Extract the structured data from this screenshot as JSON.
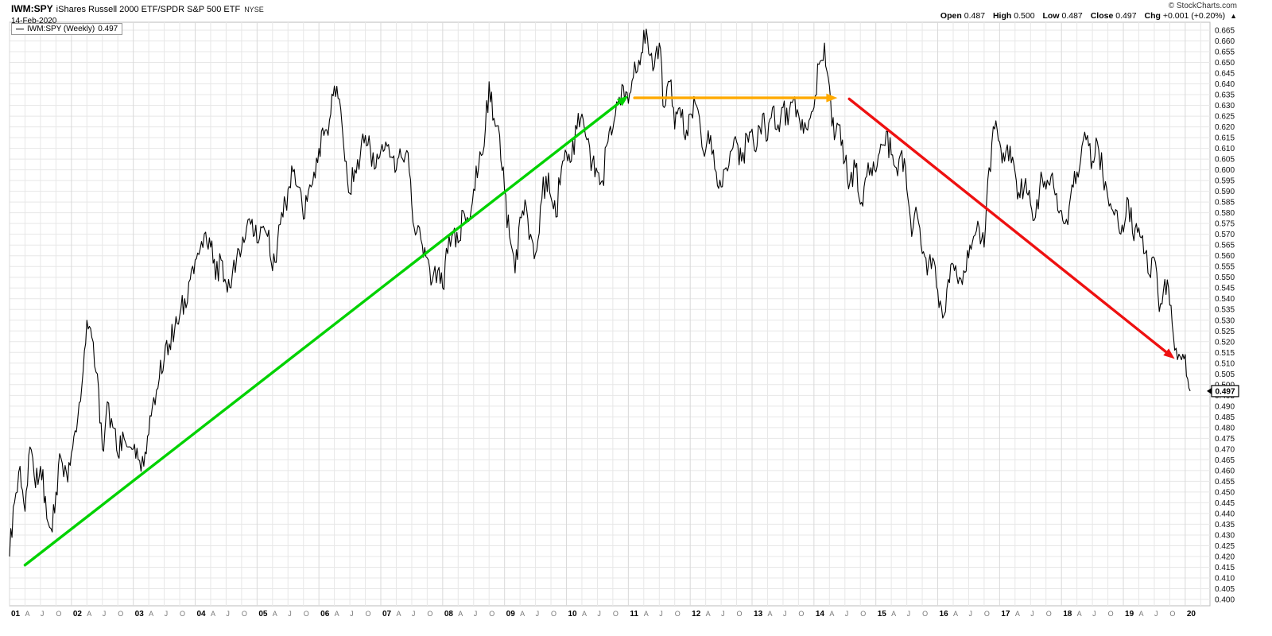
{
  "header": {
    "symbol": "IWM:SPY",
    "name": "iShares Russell 2000 ETF/SPDR S&P 500 ETF",
    "exchange": "NYSE",
    "date": "14-Feb-2020",
    "copyright": "© StockCharts.com",
    "quote": {
      "open_label": "Open",
      "open": "0.487",
      "high_label": "High",
      "high": "0.500",
      "low_label": "Low",
      "low": "0.487",
      "close_label": "Close",
      "close": "0.497",
      "chg_label": "Chg",
      "chg": "+0.001 (+0.20%)",
      "direction_icon": "▲"
    }
  },
  "legend": {
    "swatch": "—",
    "label": "IWM:SPY (Weekly)",
    "value": "0.497"
  },
  "last_price_tag": "0.497",
  "chart_data": {
    "type": "line",
    "title": "IWM:SPY iShares Russell 2000 ETF/SPDR S&P 500 ETF (Weekly ratio chart)",
    "ylim": [
      0.4,
      0.665
    ],
    "y_tick_step": 0.005,
    "x_axis": {
      "start": 2001,
      "end": 2020.4,
      "year_labels": [
        "01",
        "02",
        "03",
        "04",
        "05",
        "06",
        "07",
        "08",
        "09",
        "10",
        "11",
        "12",
        "13",
        "14",
        "15",
        "16",
        "17",
        "18",
        "19",
        "20"
      ],
      "month_labels": [
        "A",
        "J",
        "O"
      ]
    },
    "grid": true,
    "line_color": "#000000",
    "grid_color": "#e7e7e7",
    "series": [
      {
        "name": "IWM:SPY (Weekly)",
        "points": [
          [
            2001.0,
            0.42
          ],
          [
            2001.08,
            0.445
          ],
          [
            2001.17,
            0.462
          ],
          [
            2001.25,
            0.441
          ],
          [
            2001.33,
            0.471
          ],
          [
            2001.42,
            0.452
          ],
          [
            2001.5,
            0.462
          ],
          [
            2001.58,
            0.448
          ],
          [
            2001.67,
            0.433
          ],
          [
            2001.75,
            0.45
          ],
          [
            2001.83,
            0.466
          ],
          [
            2001.92,
            0.459
          ],
          [
            2002.0,
            0.468
          ],
          [
            2002.08,
            0.478
          ],
          [
            2002.17,
            0.5
          ],
          [
            2002.25,
            0.53
          ],
          [
            2002.33,
            0.522
          ],
          [
            2002.42,
            0.505
          ],
          [
            2002.5,
            0.47
          ],
          [
            2002.58,
            0.492
          ],
          [
            2002.67,
            0.48
          ],
          [
            2002.75,
            0.467
          ],
          [
            2002.83,
            0.478
          ],
          [
            2002.92,
            0.471
          ],
          [
            2003.0,
            0.47
          ],
          [
            2003.08,
            0.465
          ],
          [
            2003.17,
            0.462
          ],
          [
            2003.25,
            0.477
          ],
          [
            2003.33,
            0.494
          ],
          [
            2003.42,
            0.503
          ],
          [
            2003.5,
            0.512
          ],
          [
            2003.58,
            0.519
          ],
          [
            2003.67,
            0.526
          ],
          [
            2003.75,
            0.532
          ],
          [
            2003.83,
            0.54
          ],
          [
            2003.92,
            0.549
          ],
          [
            2004.0,
            0.558
          ],
          [
            2004.08,
            0.563
          ],
          [
            2004.17,
            0.571
          ],
          [
            2004.25,
            0.564
          ],
          [
            2004.33,
            0.549
          ],
          [
            2004.42,
            0.558
          ],
          [
            2004.5,
            0.547
          ],
          [
            2004.58,
            0.545
          ],
          [
            2004.67,
            0.559
          ],
          [
            2004.75,
            0.563
          ],
          [
            2004.83,
            0.573
          ],
          [
            2004.92,
            0.577
          ],
          [
            2005.0,
            0.566
          ],
          [
            2005.08,
            0.573
          ],
          [
            2005.17,
            0.569
          ],
          [
            2005.25,
            0.553
          ],
          [
            2005.33,
            0.566
          ],
          [
            2005.42,
            0.578
          ],
          [
            2005.5,
            0.591
          ],
          [
            2005.58,
            0.599
          ],
          [
            2005.67,
            0.592
          ],
          [
            2005.75,
            0.577
          ],
          [
            2005.83,
            0.59
          ],
          [
            2005.92,
            0.599
          ],
          [
            2006.0,
            0.61
          ],
          [
            2006.08,
            0.616
          ],
          [
            2006.17,
            0.623
          ],
          [
            2006.25,
            0.639
          ],
          [
            2006.33,
            0.633
          ],
          [
            2006.42,
            0.604
          ],
          [
            2006.5,
            0.589
          ],
          [
            2006.58,
            0.6
          ],
          [
            2006.67,
            0.607
          ],
          [
            2006.75,
            0.616
          ],
          [
            2006.83,
            0.61
          ],
          [
            2006.92,
            0.601
          ],
          [
            2007.0,
            0.609
          ],
          [
            2007.08,
            0.613
          ],
          [
            2007.17,
            0.606
          ],
          [
            2007.25,
            0.6
          ],
          [
            2007.33,
            0.606
          ],
          [
            2007.42,
            0.609
          ],
          [
            2007.5,
            0.584
          ],
          [
            2007.58,
            0.571
          ],
          [
            2007.67,
            0.565
          ],
          [
            2007.75,
            0.559
          ],
          [
            2007.83,
            0.548
          ],
          [
            2007.92,
            0.553
          ],
          [
            2008.0,
            0.545
          ],
          [
            2008.08,
            0.561
          ],
          [
            2008.17,
            0.571
          ],
          [
            2008.25,
            0.566
          ],
          [
            2008.33,
            0.581
          ],
          [
            2008.42,
            0.576
          ],
          [
            2008.5,
            0.591
          ],
          [
            2008.58,
            0.601
          ],
          [
            2008.67,
            0.611
          ],
          [
            2008.75,
            0.641
          ],
          [
            2008.83,
            0.624
          ],
          [
            2008.92,
            0.616
          ],
          [
            2009.0,
            0.59
          ],
          [
            2009.08,
            0.569
          ],
          [
            2009.17,
            0.552
          ],
          [
            2009.25,
            0.578
          ],
          [
            2009.33,
            0.586
          ],
          [
            2009.42,
            0.57
          ],
          [
            2009.5,
            0.561
          ],
          [
            2009.58,
            0.583
          ],
          [
            2009.67,
            0.597
          ],
          [
            2009.75,
            0.587
          ],
          [
            2009.83,
            0.578
          ],
          [
            2009.92,
            0.601
          ],
          [
            2010.0,
            0.608
          ],
          [
            2010.08,
            0.604
          ],
          [
            2010.17,
            0.619
          ],
          [
            2010.25,
            0.626
          ],
          [
            2010.33,
            0.614
          ],
          [
            2010.42,
            0.604
          ],
          [
            2010.5,
            0.599
          ],
          [
            2010.58,
            0.595
          ],
          [
            2010.67,
            0.613
          ],
          [
            2010.75,
            0.619
          ],
          [
            2010.83,
            0.631
          ],
          [
            2010.92,
            0.639
          ],
          [
            2011.0,
            0.631
          ],
          [
            2011.08,
            0.643
          ],
          [
            2011.17,
            0.651
          ],
          [
            2011.25,
            0.665
          ],
          [
            2011.33,
            0.654
          ],
          [
            2011.42,
            0.648
          ],
          [
            2011.5,
            0.659
          ],
          [
            2011.58,
            0.629
          ],
          [
            2011.67,
            0.641
          ],
          [
            2011.75,
            0.619
          ],
          [
            2011.83,
            0.629
          ],
          [
            2011.92,
            0.614
          ],
          [
            2012.0,
            0.626
          ],
          [
            2012.08,
            0.631
          ],
          [
            2012.17,
            0.618
          ],
          [
            2012.25,
            0.609
          ],
          [
            2012.33,
            0.616
          ],
          [
            2012.42,
            0.599
          ],
          [
            2012.5,
            0.592
          ],
          [
            2012.58,
            0.601
          ],
          [
            2012.67,
            0.609
          ],
          [
            2012.75,
            0.613
          ],
          [
            2012.83,
            0.604
          ],
          [
            2012.92,
            0.616
          ],
          [
            2013.0,
            0.619
          ],
          [
            2013.08,
            0.611
          ],
          [
            2013.17,
            0.626
          ],
          [
            2013.25,
            0.614
          ],
          [
            2013.33,
            0.629
          ],
          [
            2013.42,
            0.621
          ],
          [
            2013.5,
            0.629
          ],
          [
            2013.58,
            0.621
          ],
          [
            2013.67,
            0.633
          ],
          [
            2013.75,
            0.626
          ],
          [
            2013.83,
            0.617
          ],
          [
            2013.92,
            0.623
          ],
          [
            2014.0,
            0.629
          ],
          [
            2014.08,
            0.649
          ],
          [
            2014.17,
            0.659
          ],
          [
            2014.25,
            0.639
          ],
          [
            2014.33,
            0.614
          ],
          [
            2014.42,
            0.621
          ],
          [
            2014.5,
            0.604
          ],
          [
            2014.58,
            0.594
          ],
          [
            2014.67,
            0.601
          ],
          [
            2014.75,
            0.584
          ],
          [
            2014.83,
            0.596
          ],
          [
            2014.92,
            0.601
          ],
          [
            2015.0,
            0.599
          ],
          [
            2015.08,
            0.612
          ],
          [
            2015.17,
            0.618
          ],
          [
            2015.25,
            0.607
          ],
          [
            2015.33,
            0.601
          ],
          [
            2015.42,
            0.609
          ],
          [
            2015.5,
            0.591
          ],
          [
            2015.58,
            0.569
          ],
          [
            2015.67,
            0.579
          ],
          [
            2015.75,
            0.561
          ],
          [
            2015.83,
            0.551
          ],
          [
            2015.92,
            0.559
          ],
          [
            2016.0,
            0.544
          ],
          [
            2016.08,
            0.531
          ],
          [
            2016.17,
            0.549
          ],
          [
            2016.25,
            0.556
          ],
          [
            2016.33,
            0.547
          ],
          [
            2016.42,
            0.553
          ],
          [
            2016.5,
            0.559
          ],
          [
            2016.58,
            0.569
          ],
          [
            2016.67,
            0.573
          ],
          [
            2016.75,
            0.564
          ],
          [
            2016.83,
            0.601
          ],
          [
            2016.92,
            0.619
          ],
          [
            2017.0,
            0.613
          ],
          [
            2017.08,
            0.604
          ],
          [
            2017.17,
            0.611
          ],
          [
            2017.25,
            0.599
          ],
          [
            2017.33,
            0.587
          ],
          [
            2017.42,
            0.596
          ],
          [
            2017.5,
            0.584
          ],
          [
            2017.58,
            0.578
          ],
          [
            2017.67,
            0.599
          ],
          [
            2017.75,
            0.591
          ],
          [
            2017.83,
            0.597
          ],
          [
            2017.92,
            0.589
          ],
          [
            2018.0,
            0.581
          ],
          [
            2018.08,
            0.577
          ],
          [
            2018.17,
            0.593
          ],
          [
            2018.25,
            0.599
          ],
          [
            2018.33,
            0.611
          ],
          [
            2018.42,
            0.616
          ],
          [
            2018.5,
            0.604
          ],
          [
            2018.58,
            0.613
          ],
          [
            2018.67,
            0.597
          ],
          [
            2018.75,
            0.587
          ],
          [
            2018.83,
            0.581
          ],
          [
            2018.92,
            0.574
          ],
          [
            2019.0,
            0.571
          ],
          [
            2019.08,
            0.586
          ],
          [
            2019.17,
            0.567
          ],
          [
            2019.25,
            0.573
          ],
          [
            2019.33,
            0.561
          ],
          [
            2019.42,
            0.551
          ],
          [
            2019.5,
            0.559
          ],
          [
            2019.58,
            0.534
          ],
          [
            2019.67,
            0.549
          ],
          [
            2019.75,
            0.537
          ],
          [
            2019.83,
            0.516
          ],
          [
            2019.92,
            0.513
          ],
          [
            2020.0,
            0.514
          ],
          [
            2020.08,
            0.497
          ]
        ]
      }
    ],
    "annotations": [
      {
        "type": "arrow",
        "name": "uptrend-arrow",
        "from": [
          2001.25,
          0.416
        ],
        "to": [
          2011.0,
          0.6345
        ],
        "color": "#00d200"
      },
      {
        "type": "arrow",
        "name": "sideways-arrow",
        "from": [
          2011.1,
          0.6335
        ],
        "to": [
          2014.38,
          0.6335
        ],
        "color": "#ffaa00"
      },
      {
        "type": "arrow",
        "name": "downtrend-arrow",
        "from": [
          2014.57,
          0.633
        ],
        "to": [
          2019.83,
          0.512
        ],
        "color": "#ee1111"
      }
    ]
  }
}
